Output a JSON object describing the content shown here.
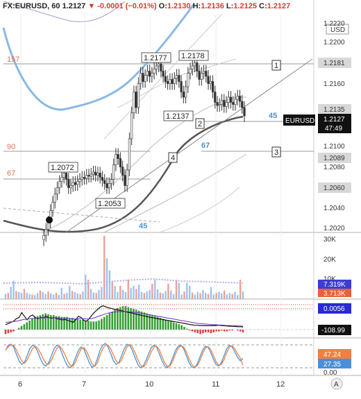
{
  "header": {
    "symbol": "FX:EURUSD, 60",
    "last": "1.2127",
    "change_arrow": "▼",
    "change": "-0.0001 (−0.01%)",
    "o_label": "O:",
    "o": "1.2130",
    "h_label": "H:",
    "h": "1.2136",
    "l_label": "L:",
    "l": "1.2125",
    "c_label": "C:",
    "c": "1.2127"
  },
  "currency_badge": "USD",
  "price_axis": {
    "ticks": [
      "1.2220",
      "1.2200",
      "1.2181",
      "1.2160",
      "1.2135",
      "1.2127",
      "47:49",
      "1.2100",
      "1.2089",
      "1.2080",
      "1.2060",
      "1.2040",
      "1.2020"
    ],
    "symbol_tag": "EURUSD"
  },
  "volume_axis": {
    "ticks": [
      "30K",
      "20K",
      "10K",
      "7.319K",
      "3.713K"
    ]
  },
  "macd_axis": {
    "ticks": [
      "0.0056",
      "-108.99"
    ]
  },
  "stoch_axis": {
    "ticks": [
      "47.24",
      "27.35",
      "0.00"
    ]
  },
  "time_axis": {
    "ticks": [
      "6",
      "7",
      "10",
      "11",
      "12"
    ],
    "auto_button": "A"
  },
  "annotations": {
    "level_157": "157",
    "level_90": "90",
    "level_67_left": "67",
    "ma_45_upper": "45",
    "ma_67": "67",
    "ma_45_lower": "45",
    "price_1_2177": "1.2177",
    "price_1_2178": "1.2178",
    "price_1_2137": "1.2137",
    "price_1_2072": "1.2072",
    "price_1_2053": "1.2053",
    "marker_1": "1",
    "marker_2": "2",
    "marker_3": "3",
    "marker_4": "4"
  },
  "colors": {
    "up": "#3a8a3a",
    "down": "#d9392f",
    "ma_blue": "#8ab8e6",
    "ma_dark": "#555555",
    "accent_blue": "#4a90d9",
    "level_label": "#e07050",
    "macd_line": "#111111",
    "macd_signal": "#7030c0",
    "stoch_k": "#4a90d9",
    "stoch_d": "#f08040"
  },
  "chart_data": [
    {
      "type": "candlestick",
      "title": "FX:EURUSD, 60",
      "ylim": [
        1.2015,
        1.2225
      ],
      "x_ticks": [
        "6",
        "7",
        "10",
        "11",
        "12"
      ],
      "levels": [
        1.2181,
        1.2135,
        1.2089,
        1.206
      ],
      "closes": [
        1.2012,
        1.2018,
        1.2025,
        1.2036,
        1.2044,
        1.2052,
        1.2058,
        1.2064,
        1.2068,
        1.2072,
        1.2066,
        1.2058,
        1.206,
        1.2063,
        1.2061,
        1.2064,
        1.2066,
        1.2068,
        1.2067,
        1.207,
        1.2069,
        1.2071,
        1.2073,
        1.207,
        1.2072,
        1.2068,
        1.2065,
        1.2062,
        1.2058,
        1.2062,
        1.2066,
        1.208,
        1.209,
        1.2086,
        1.2078,
        1.207,
        1.206,
        1.2075,
        1.2105,
        1.213,
        1.215,
        1.2135,
        1.2158,
        1.2168,
        1.216,
        1.2166,
        1.217,
        1.2165,
        1.2168,
        1.2172,
        1.2175,
        1.2177,
        1.217,
        1.2165,
        1.216,
        1.2158,
        1.2162,
        1.2158,
        1.2163,
        1.2166,
        1.216,
        1.215,
        1.2145,
        1.2155,
        1.2168,
        1.2172,
        1.2175,
        1.2178,
        1.217,
        1.2162,
        1.2168,
        1.217,
        1.2165,
        1.2158,
        1.216,
        1.215,
        1.214,
        1.2137,
        1.2138,
        1.2142,
        1.2136,
        1.214,
        1.2145,
        1.214,
        1.2138,
        1.2143,
        1.2146,
        1.2141,
        1.2135,
        1.2127
      ]
    },
    {
      "type": "bar",
      "title": "Volume",
      "ylim": [
        0,
        32000
      ],
      "values": [
        2500,
        3000,
        6000,
        9000,
        4000,
        3500,
        3000,
        5000,
        3000,
        2500,
        2200,
        2000,
        3000,
        4200,
        3500,
        2500,
        3800,
        2800,
        2200,
        3000,
        2000,
        5500,
        2500,
        3000,
        6500,
        4000,
        3500,
        2800,
        2500,
        3800,
        12000,
        9500,
        5000,
        3200,
        3000,
        4500,
        6000,
        31000,
        20000,
        14000,
        9000,
        6500,
        3500,
        6500,
        4500,
        3500,
        9500,
        5500,
        6500,
        5000,
        7000,
        3500,
        3000,
        3800,
        4500,
        7500,
        9500,
        4800,
        3200,
        2800,
        4000,
        7500,
        4200,
        2500,
        9500,
        8000,
        2200,
        3800,
        8000,
        6500,
        3200,
        2200,
        3500,
        2800,
        4500,
        3000,
        2500,
        6000,
        2200,
        3000,
        3500,
        2800,
        4200,
        2200,
        3000,
        2500,
        3500,
        2000,
        9500,
        3713
      ]
    },
    {
      "type": "histogram",
      "title": "MACD",
      "values": [
        -5,
        -4,
        -3,
        -2,
        0,
        2,
        4,
        6,
        8,
        10,
        12,
        14,
        15,
        16,
        17,
        18,
        17,
        16,
        16,
        15,
        15,
        14,
        14,
        14,
        13,
        13,
        12,
        12,
        11,
        11,
        10,
        10,
        9,
        9,
        9,
        10,
        12,
        14,
        16,
        18,
        20,
        22,
        24,
        25,
        26,
        26,
        25,
        24,
        23,
        22,
        21,
        20,
        19,
        18,
        17,
        16,
        15,
        14,
        13,
        12,
        11,
        10,
        9,
        8,
        7,
        6,
        5,
        3,
        1,
        -1,
        -2,
        -3,
        -4,
        -5,
        -4,
        -3,
        -3,
        -4,
        -3,
        -2,
        -2,
        -1,
        -2,
        -2,
        -1,
        -1,
        0,
        -1,
        -2,
        -3
      ],
      "macd_line": [
        0.2,
        0.25,
        0.3,
        0.35,
        0.45,
        0.5,
        0.7,
        0.55,
        0.4,
        0.55,
        0.6,
        0.5,
        0.45,
        0.5,
        0.48,
        0.55,
        0.5,
        0.47,
        0.5,
        0.45,
        0.43,
        0.4,
        0.42,
        0.38,
        0.35,
        0.3,
        0.4,
        0.55,
        0.5,
        0.38,
        0.35,
        0.45,
        0.6,
        0.72,
        0.82,
        0.92,
        0.98,
        0.95,
        0.9,
        0.88,
        0.85,
        0.82,
        0.8,
        0.78,
        0.75,
        0.72,
        0.7,
        0.68,
        0.65,
        0.62,
        0.6,
        0.57,
        0.55,
        0.52,
        0.5,
        0.48,
        0.46,
        0.44,
        0.42,
        0.4,
        0.38,
        0.36,
        0.34,
        0.32,
        0.3,
        0.28,
        0.26,
        0.24,
        0.22,
        0.2,
        0.18,
        0.18,
        0.17,
        0.17,
        0.16,
        0.16,
        0.16,
        0.17,
        0.17,
        0.18,
        0.17,
        0.16,
        0.15,
        0.14,
        0.14,
        0.13,
        0.12,
        0.12,
        0.11
      ],
      "signal_line": [
        0.3,
        0.31,
        0.32,
        0.33,
        0.35,
        0.37,
        0.4,
        0.42,
        0.43,
        0.44,
        0.46,
        0.47,
        0.47,
        0.48,
        0.48,
        0.49,
        0.49,
        0.49,
        0.49,
        0.48,
        0.48,
        0.47,
        0.47,
        0.46,
        0.45,
        0.44,
        0.44,
        0.45,
        0.46,
        0.45,
        0.44,
        0.44,
        0.46,
        0.49,
        0.53,
        0.57,
        0.61,
        0.65,
        0.68,
        0.7,
        0.72,
        0.73,
        0.74,
        0.74,
        0.74,
        0.74,
        0.73,
        0.72,
        0.71,
        0.7,
        0.68,
        0.66,
        0.64,
        0.62,
        0.6,
        0.58,
        0.56,
        0.54,
        0.52,
        0.5,
        0.48,
        0.46,
        0.44,
        0.42,
        0.4,
        0.38,
        0.36,
        0.34,
        0.32,
        0.3,
        0.28,
        0.26,
        0.25,
        0.24,
        0.23,
        0.22,
        0.21,
        0.2,
        0.2,
        0.19,
        0.19,
        0.18,
        0.17,
        0.17,
        0.16,
        0.16,
        0.15,
        0.15,
        0.14
      ]
    },
    {
      "type": "line",
      "title": "Stochastic",
      "ylim": [
        0,
        100
      ],
      "series": [
        {
          "values": [
            70,
            85,
            88,
            80,
            60,
            40,
            30,
            35,
            55,
            75,
            85,
            80,
            65,
            45,
            30,
            25,
            35,
            55,
            75,
            85,
            80,
            60,
            40,
            25,
            20,
            30,
            50,
            70,
            80,
            75,
            55,
            35,
            22,
            25,
            45,
            70,
            85,
            90,
            80,
            60,
            40,
            30,
            35,
            55,
            75,
            88,
            85,
            70,
            50,
            30,
            20,
            25,
            40,
            60,
            78,
            85,
            80,
            60,
            40,
            25,
            20,
            30,
            50,
            70,
            82,
            85,
            75,
            55,
            35,
            22,
            20,
            30,
            50,
            70,
            82,
            80,
            65,
            45,
            30,
            25,
            35,
            55,
            75,
            85,
            80,
            65,
            50,
            40,
            47.24
          ]
        },
        {
          "values": [
            72,
            80,
            86,
            84,
            72,
            55,
            40,
            33,
            42,
            60,
            75,
            82,
            76,
            62,
            45,
            32,
            30,
            42,
            60,
            76,
            82,
            74,
            58,
            40,
            27,
            25,
            38,
            58,
            74,
            78,
            68,
            50,
            32,
            24,
            33,
            55,
            75,
            86,
            86,
            74,
            56,
            40,
            33,
            42,
            62,
            80,
            87,
            80,
            64,
            44,
            28,
            22,
            30,
            48,
            66,
            80,
            82,
            72,
            52,
            34,
            24,
            26,
            40,
            60,
            76,
            83,
            80,
            66,
            46,
            30,
            22,
            25,
            40,
            60,
            76,
            81,
            74,
            56,
            38,
            28,
            30,
            44,
            64,
            80,
            83,
            74,
            60,
            48,
            27.35
          ]
        }
      ]
    }
  ]
}
